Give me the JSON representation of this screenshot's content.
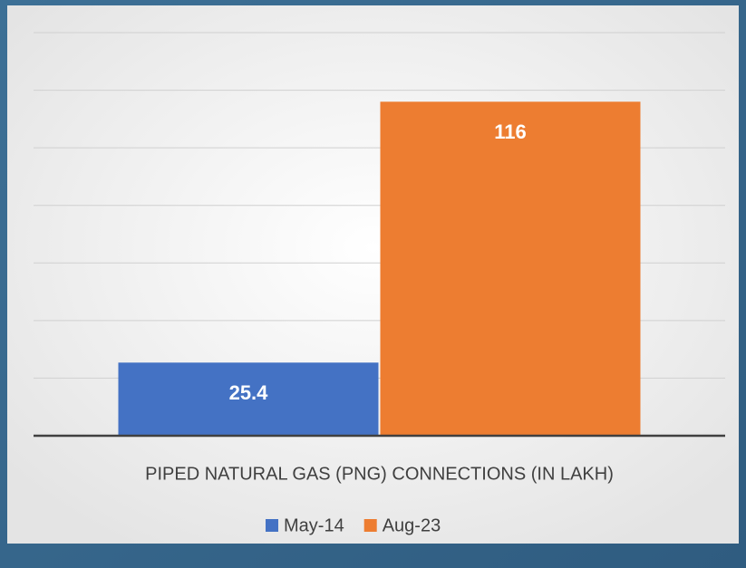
{
  "chart_data": {
    "type": "bar",
    "categories": [
      "PIPED NATURAL GAS (PNG) CONNECTIONS (IN LAKH)"
    ],
    "series": [
      {
        "name": "May-14",
        "color": "#4472c4",
        "values": [
          25.4
        ]
      },
      {
        "name": "Aug-23",
        "color": "#ed7d31",
        "values": [
          116
        ]
      }
    ],
    "ylim": [
      0,
      140
    ],
    "yticks": [
      0,
      20,
      40,
      60,
      80,
      100,
      120,
      140
    ],
    "grid": true,
    "legend": "bottom"
  }
}
